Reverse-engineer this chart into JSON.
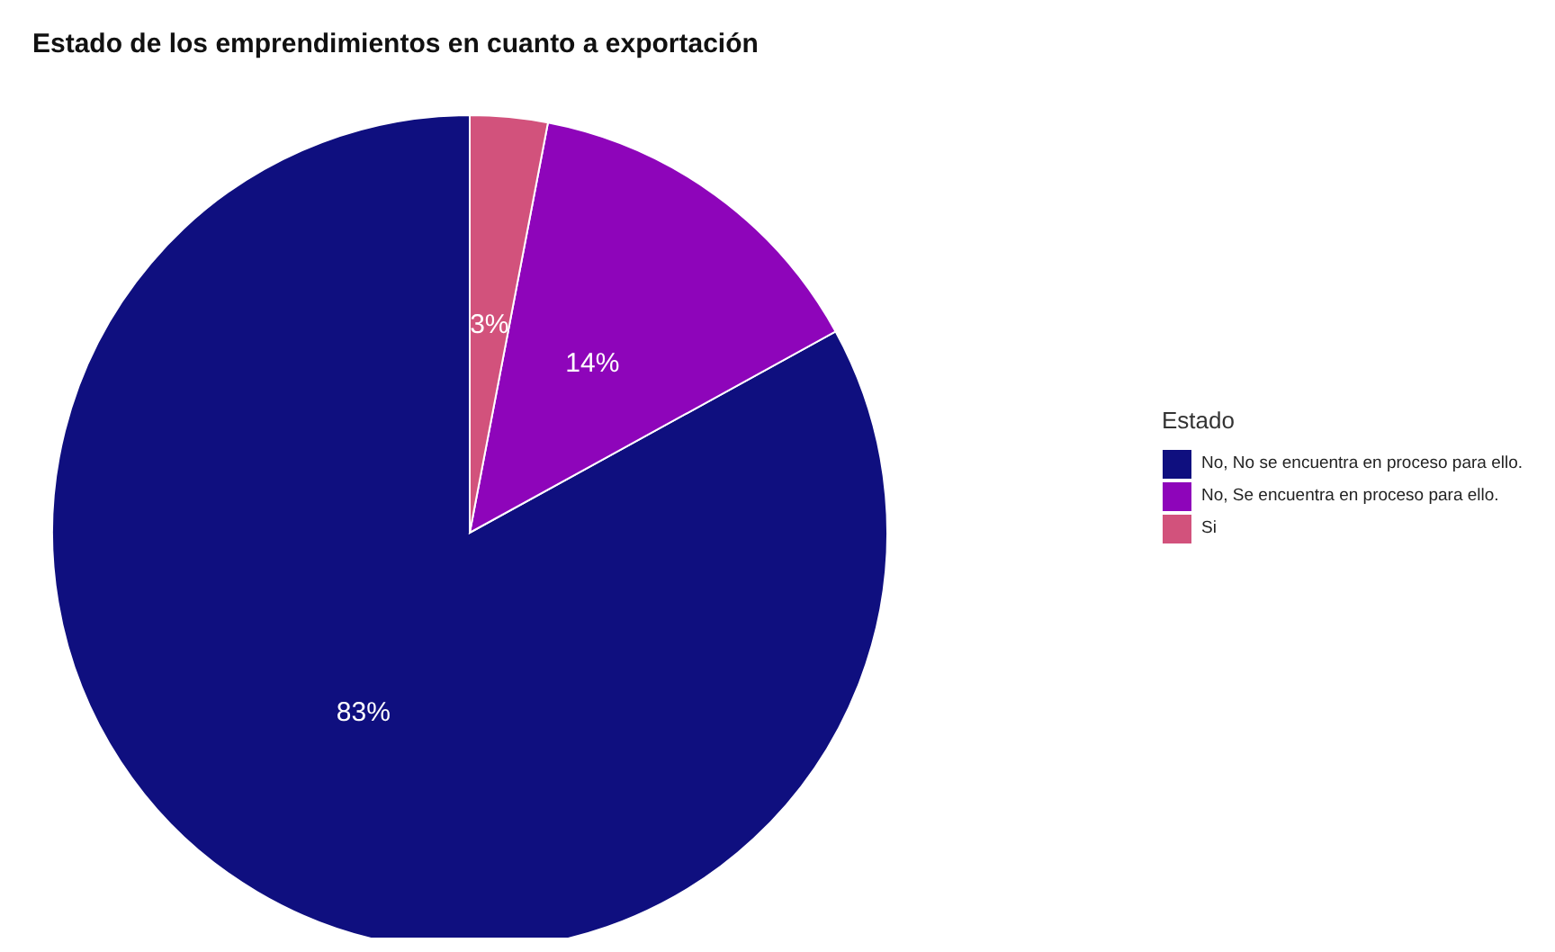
{
  "chart_data": {
    "type": "pie",
    "title": "Estado de los emprendimientos en cuanto a exportación",
    "legend_title": "Estado",
    "categories": [
      "No, No se encuentra en proceso para ello.",
      "No, Se encuentra en proceso para ello.",
      "Si"
    ],
    "values": [
      83,
      14,
      3
    ],
    "colors": [
      "#0f0f7f",
      "#8e05ba",
      "#d2527c"
    ],
    "value_labels": [
      "83%",
      "14%",
      "3%"
    ],
    "legend": "right"
  }
}
